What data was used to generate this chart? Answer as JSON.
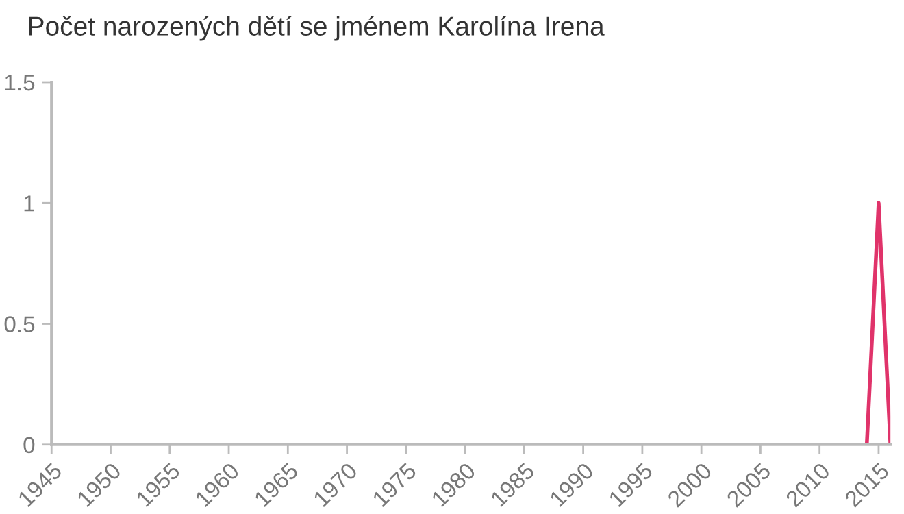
{
  "chart_data": {
    "type": "line",
    "title": "Počet narozených dětí se jménem Karolína Irena",
    "x": [
      1945,
      2014,
      2015,
      2016
    ],
    "series": [
      {
        "color": "#e0336a",
        "values": [
          0,
          0,
          1,
          0
        ]
      }
    ],
    "xlim": [
      1945,
      2016
    ],
    "xticks": [
      1945,
      1950,
      1955,
      1960,
      1965,
      1970,
      1975,
      1980,
      1985,
      1990,
      1995,
      2000,
      2005,
      2010,
      2015
    ],
    "ylim": [
      0,
      1.5
    ],
    "yticks": [
      0,
      0.5,
      1,
      1.5
    ],
    "grid": false,
    "legend": false
  }
}
